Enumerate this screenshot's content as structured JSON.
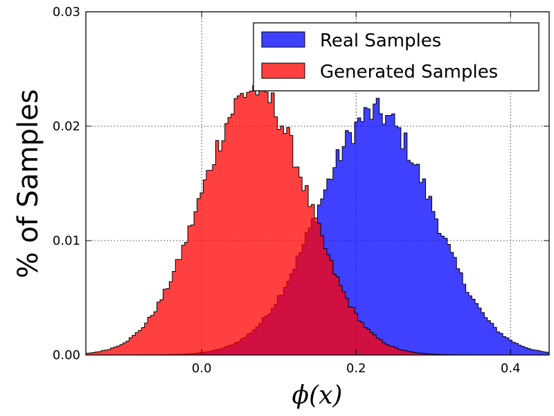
{
  "chart_data": {
    "type": "histogram",
    "xlabel": "ϕ(x)",
    "ylabel": "% of Samples",
    "xlim": [
      -0.15,
      0.45
    ],
    "ylim": [
      0,
      0.03
    ],
    "x_ticks": [
      0.0,
      0.2,
      0.4
    ],
    "x_tick_labels": [
      "0.0",
      "0.2",
      "0.4"
    ],
    "y_ticks": [
      0.0,
      0.01,
      0.02,
      0.03
    ],
    "y_tick_labels": [
      "0.00",
      "0.01",
      "0.02",
      "0.03"
    ],
    "grid": true,
    "legend_position": "top-right",
    "bin_width": 0.004,
    "series": [
      {
        "name": "Real Samples",
        "color": "#0000ff",
        "alpha": 0.75,
        "mean": 0.225,
        "std": 0.074,
        "peak": 0.0212
      },
      {
        "name": "Generated Samples",
        "color": "#ff0000",
        "alpha": 0.75,
        "mean": 0.068,
        "std": 0.068,
        "peak": 0.0233
      }
    ]
  }
}
